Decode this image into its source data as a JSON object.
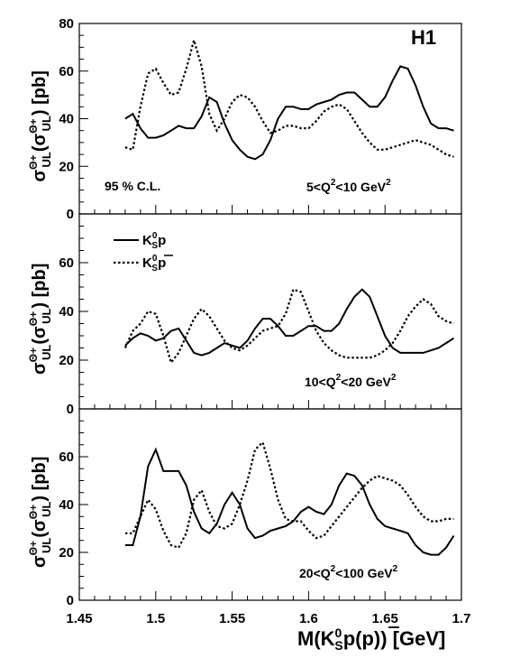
{
  "chart_data": {
    "type": "line",
    "x_range": [
      1.45,
      1.7
    ],
    "x_ticks": [
      "1.45",
      "1.5",
      "1.55",
      "1.6",
      "1.65",
      "1.7"
    ],
    "x_label_parts": {
      "pre": "M(K",
      "sup": "0",
      "sub": "S",
      "mid": "p(",
      "pbar": "p",
      "post": ")) [GeV]"
    },
    "y_label_parts": {
      "sigma": "σ",
      "sup": "Θ",
      "sup_sign": "+",
      "sub": "UL",
      "open": "(",
      "close": ") [pb]"
    },
    "experiment_label": "H1",
    "cl_label": "95 % C.L.",
    "legend": {
      "solid": {
        "k": "K",
        "sup": "0",
        "sub": "S",
        "p": "p"
      },
      "dotted": {
        "k": "K",
        "sup": "0",
        "sub": "S",
        "p": "p"
      }
    },
    "panels": [
      {
        "q2_label": {
          "pre": "5<Q",
          "sup": "2",
          "post": "<10 GeV",
          "sup2": "2"
        },
        "ylim": [
          0,
          80
        ],
        "y_ticks": [
          "0",
          "20",
          "40",
          "60",
          "80"
        ],
        "series": [
          {
            "style": "solid",
            "x": [
              1.48,
              1.485,
              1.49,
              1.495,
              1.5,
              1.505,
              1.51,
              1.515,
              1.52,
              1.525,
              1.53,
              1.535,
              1.54,
              1.545,
              1.55,
              1.555,
              1.56,
              1.565,
              1.57,
              1.575,
              1.58,
              1.585,
              1.59,
              1.595,
              1.6,
              1.605,
              1.61,
              1.615,
              1.62,
              1.625,
              1.63,
              1.635,
              1.64,
              1.645,
              1.65,
              1.655,
              1.66,
              1.665,
              1.67,
              1.675,
              1.68,
              1.685,
              1.69,
              1.695
            ],
            "y": [
              40,
              42,
              36,
              32,
              32,
              33,
              35,
              37,
              36,
              36,
              41,
              49,
              47,
              38,
              31,
              27,
              24,
              23,
              25,
              31,
              40,
              45,
              45,
              44,
              44,
              46,
              47,
              48,
              50,
              51,
              51,
              48,
              45,
              45,
              49,
              56,
              62,
              61,
              54,
              45,
              38,
              36,
              36,
              35
            ]
          },
          {
            "style": "dotted",
            "x": [
              1.48,
              1.485,
              1.49,
              1.495,
              1.5,
              1.505,
              1.51,
              1.515,
              1.52,
              1.525,
              1.53,
              1.535,
              1.54,
              1.545,
              1.55,
              1.555,
              1.56,
              1.565,
              1.57,
              1.575,
              1.58,
              1.585,
              1.59,
              1.595,
              1.6,
              1.605,
              1.61,
              1.615,
              1.62,
              1.625,
              1.63,
              1.635,
              1.64,
              1.645,
              1.65,
              1.655,
              1.66,
              1.665,
              1.67,
              1.675,
              1.68,
              1.685,
              1.69,
              1.695
            ],
            "y": [
              28,
              27,
              45,
              59,
              61,
              55,
              50,
              51,
              61,
              73,
              62,
              42,
              35,
              40,
              47,
              50,
              49,
              45,
              39,
              34,
              35,
              37,
              37,
              36,
              36,
              39,
              43,
              45,
              46,
              44,
              39,
              34,
              30,
              27,
              27,
              28,
              29,
              30,
              31,
              30,
              29,
              27,
              25,
              24
            ]
          }
        ]
      },
      {
        "q2_label": {
          "pre": "10<Q",
          "sup": "2",
          "post": "<20 GeV",
          "sup2": "2"
        },
        "ylim": [
          0,
          80
        ],
        "y_ticks": [
          "0",
          "20",
          "40",
          "60"
        ],
        "series": [
          {
            "style": "solid",
            "x": [
              1.48,
              1.485,
              1.49,
              1.495,
              1.5,
              1.505,
              1.51,
              1.515,
              1.52,
              1.525,
              1.53,
              1.535,
              1.54,
              1.545,
              1.55,
              1.555,
              1.56,
              1.565,
              1.57,
              1.575,
              1.58,
              1.585,
              1.59,
              1.595,
              1.6,
              1.605,
              1.61,
              1.615,
              1.62,
              1.625,
              1.63,
              1.635,
              1.64,
              1.645,
              1.65,
              1.655,
              1.66,
              1.665,
              1.67,
              1.675,
              1.68,
              1.685,
              1.69,
              1.695
            ],
            "y": [
              26,
              29,
              31,
              30,
              28,
              29,
              32,
              33,
              28,
              23,
              22,
              23,
              25,
              27,
              26,
              25,
              28,
              33,
              37,
              37,
              34,
              30,
              30,
              32,
              34,
              34,
              32,
              32,
              35,
              41,
              46,
              49,
              46,
              38,
              30,
              25,
              23,
              23,
              23,
              23,
              24,
              25,
              27,
              29
            ]
          },
          {
            "style": "dotted",
            "x": [
              1.48,
              1.485,
              1.49,
              1.495,
              1.5,
              1.505,
              1.51,
              1.515,
              1.52,
              1.525,
              1.53,
              1.535,
              1.54,
              1.545,
              1.55,
              1.555,
              1.56,
              1.565,
              1.57,
              1.575,
              1.58,
              1.585,
              1.59,
              1.595,
              1.6,
              1.605,
              1.61,
              1.615,
              1.62,
              1.625,
              1.63,
              1.635,
              1.64,
              1.645,
              1.65,
              1.655,
              1.66,
              1.665,
              1.67,
              1.675,
              1.68,
              1.685,
              1.69,
              1.695
            ],
            "y": [
              25,
              32,
              35,
              40,
              39,
              30,
              19,
              23,
              30,
              37,
              41,
              38,
              33,
              28,
              25,
              24,
              26,
              29,
              32,
              33,
              34,
              39,
              49,
              48,
              40,
              32,
              27,
              24,
              22,
              21,
              21,
              21,
              21,
              22,
              24,
              27,
              32,
              38,
              42,
              45,
              43,
              38,
              36,
              35
            ]
          }
        ]
      },
      {
        "q2_label": {
          "pre": "20<Q",
          "sup": "2",
          "post": "<100 GeV",
          "sup2": "2"
        },
        "ylim": [
          0,
          80
        ],
        "y_ticks": [
          "0",
          "20",
          "40",
          "60"
        ],
        "series": [
          {
            "style": "solid",
            "x": [
              1.48,
              1.485,
              1.49,
              1.495,
              1.5,
              1.505,
              1.51,
              1.515,
              1.52,
              1.525,
              1.53,
              1.535,
              1.54,
              1.545,
              1.55,
              1.555,
              1.56,
              1.565,
              1.57,
              1.575,
              1.58,
              1.585,
              1.59,
              1.595,
              1.6,
              1.605,
              1.61,
              1.615,
              1.62,
              1.625,
              1.63,
              1.635,
              1.64,
              1.645,
              1.65,
              1.655,
              1.66,
              1.665,
              1.67,
              1.675,
              1.68,
              1.685,
              1.69,
              1.695
            ],
            "y": [
              23,
              23,
              35,
              56,
              63,
              54,
              54,
              54,
              48,
              37,
              30,
              28,
              32,
              40,
              45,
              40,
              30,
              26,
              27,
              29,
              30,
              31,
              33,
              37,
              39,
              37,
              36,
              40,
              48,
              53,
              52,
              48,
              40,
              34,
              31,
              30,
              29,
              28,
              23,
              20,
              19,
              19,
              22,
              27
            ]
          },
          {
            "style": "dotted",
            "x": [
              1.48,
              1.485,
              1.49,
              1.495,
              1.5,
              1.505,
              1.51,
              1.515,
              1.52,
              1.525,
              1.53,
              1.535,
              1.54,
              1.545,
              1.55,
              1.555,
              1.56,
              1.565,
              1.57,
              1.575,
              1.58,
              1.585,
              1.59,
              1.595,
              1.6,
              1.605,
              1.61,
              1.615,
              1.62,
              1.625,
              1.63,
              1.635,
              1.64,
              1.645,
              1.65,
              1.655,
              1.66,
              1.665,
              1.67,
              1.675,
              1.68,
              1.685,
              1.69,
              1.695
            ],
            "y": [
              28,
              28,
              35,
              42,
              38,
              29,
              23,
              22,
              28,
              42,
              46,
              37,
              31,
              30,
              32,
              40,
              50,
              63,
              66,
              55,
              42,
              34,
              33,
              33,
              29,
              26,
              27,
              31,
              35,
              39,
              43,
              47,
              50,
              52,
              51,
              50,
              48,
              44,
              39,
              35,
              33,
              33,
              34,
              34
            ]
          }
        ]
      }
    ]
  }
}
